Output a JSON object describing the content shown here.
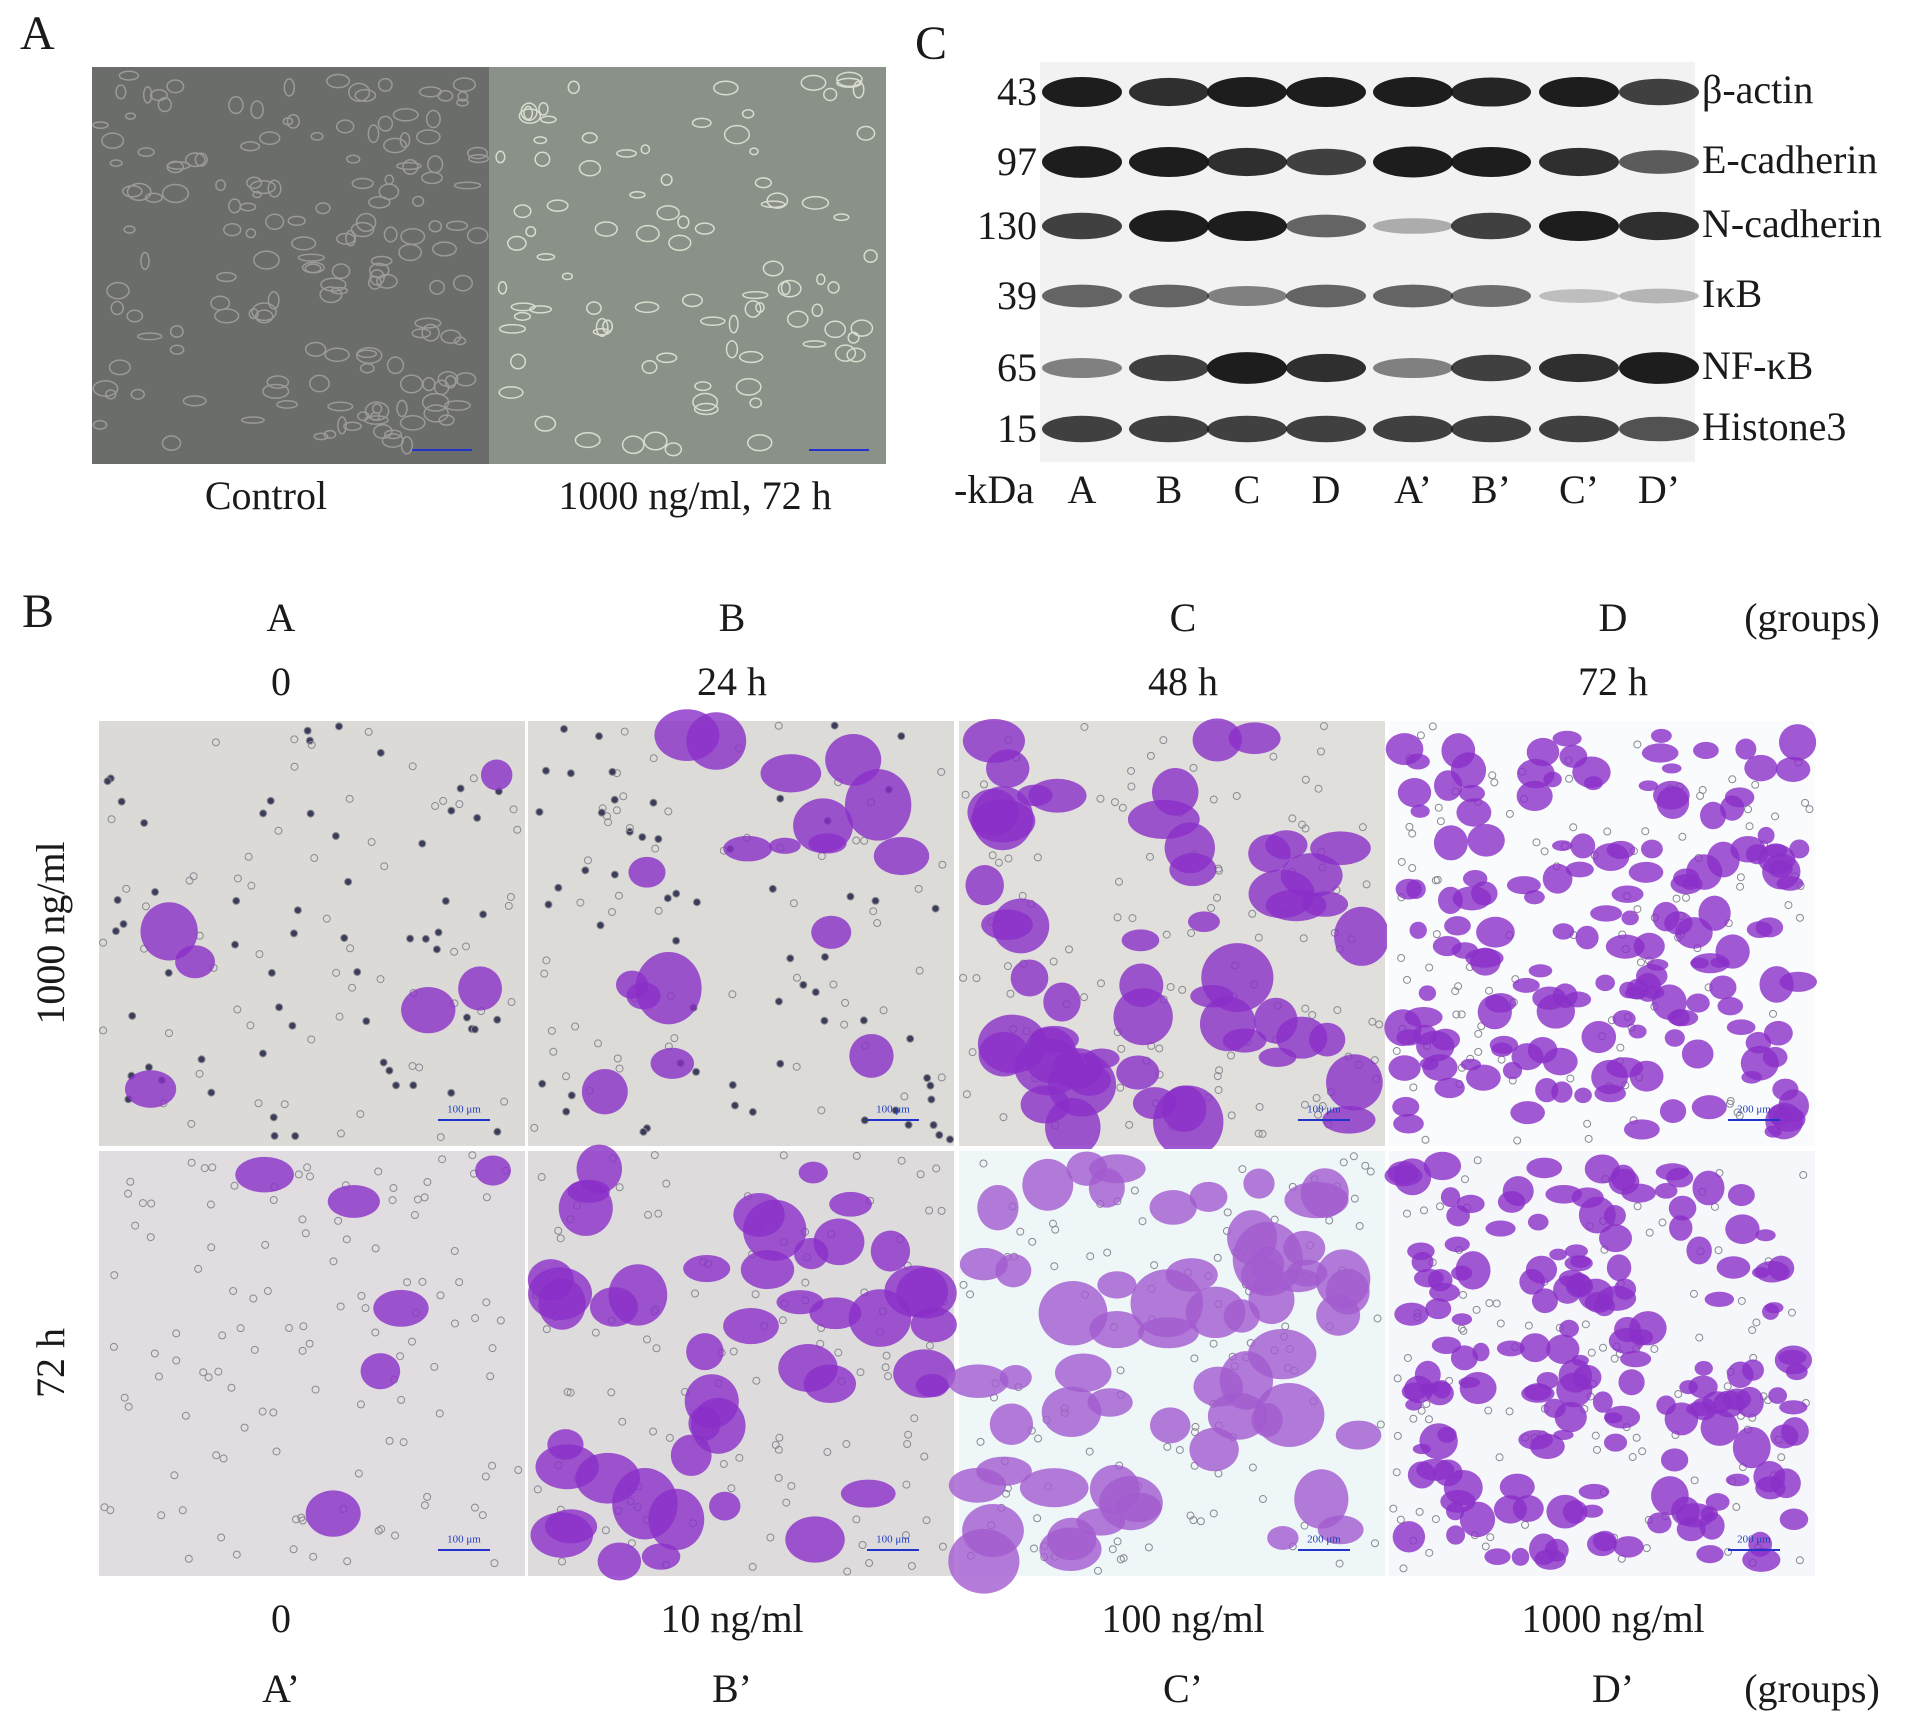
{
  "panel_a": {
    "letter": "A",
    "labels": [
      "Control",
      "1000 ng/ml, 72 h"
    ]
  },
  "panel_c": {
    "letter": "C",
    "unit": "-kDa",
    "proteins": [
      {
        "kda": 43,
        "name": "β-actin"
      },
      {
        "kda": 97,
        "name": "E-cadherin"
      },
      {
        "kda": 130,
        "name": "N-cadherin"
      },
      {
        "kda": 39,
        "name": "IκB"
      },
      {
        "kda": 65,
        "name": "NF-κB"
      },
      {
        "kda": 15,
        "name": "Histone3"
      }
    ],
    "lanes": [
      "A",
      "B",
      "C",
      "D",
      "A’",
      "B’",
      "C’",
      "D’"
    ]
  },
  "panel_b": {
    "letter": "B",
    "top_groups": [
      "A",
      "B",
      "C",
      "D"
    ],
    "groups_label": "(groups)",
    "times": [
      "0",
      "24 h",
      "48 h",
      "72 h"
    ],
    "row_labels": [
      "1000 ng/ml",
      "72 h"
    ],
    "scale_bars": [
      [
        "100 μm",
        "100 μm",
        "100 μm",
        "200 μm"
      ],
      [
        "100 μm",
        "100 μm",
        "200 μm",
        "200 μm"
      ]
    ],
    "concentrations": [
      "0",
      "10 ng/ml",
      "100 ng/ml",
      "1000 ng/ml"
    ],
    "bottom_groups": [
      "A’",
      "B’",
      "C’",
      "D’"
    ],
    "bottom_groups_label": "(groups)"
  }
}
